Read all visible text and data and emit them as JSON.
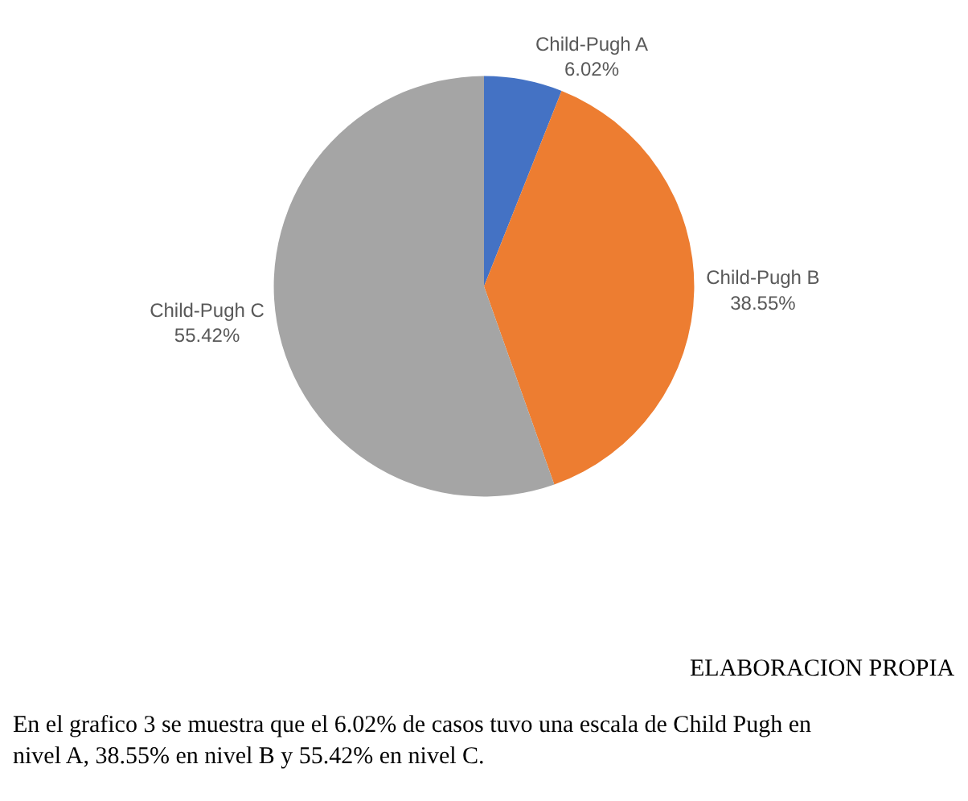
{
  "chart_data": {
    "type": "pie",
    "categories": [
      "Child-Pugh A",
      "Child-Pugh B",
      "Child-Pugh C"
    ],
    "values": [
      6.02,
      38.55,
      55.42
    ],
    "value_labels": [
      "6.02%",
      "38.55%",
      "55.42%"
    ],
    "colors": [
      "#4472c4",
      "#ed7d31",
      "#a5a5a5"
    ],
    "annotations": [
      "ELABORACION PROPIA",
      "En el grafico 3 se muestra que el 6.02% de casos tuvo una escala de Child Pugh en nivel A, 38.55% en nivel B y 55.42% en nivel C."
    ]
  }
}
